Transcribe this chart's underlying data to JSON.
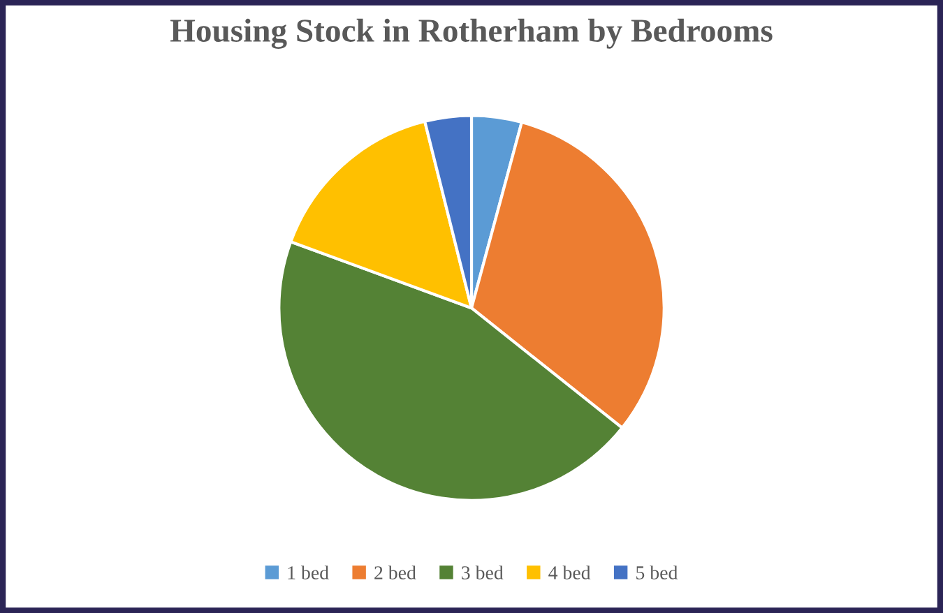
{
  "chart_data": {
    "type": "pie",
    "title": "Housing Stock in Rotherham by Bedrooms",
    "categories": [
      "1 bed",
      "2 bed",
      "3 bed",
      "4 bed",
      "5 bed"
    ],
    "values": [
      4.2,
      31.5,
      44.9,
      15.5,
      3.9
    ],
    "colors": [
      "#5b9bd5",
      "#ed7d31",
      "#548235",
      "#ffc000",
      "#4472c4"
    ],
    "legend": "bottom"
  }
}
